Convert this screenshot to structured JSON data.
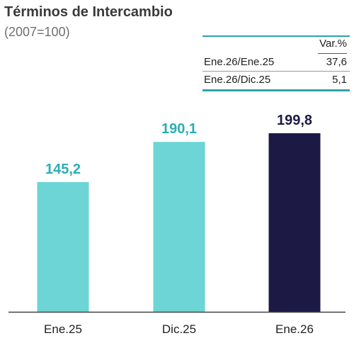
{
  "chart_data": {
    "type": "bar",
    "title": "Términos de Intercambio",
    "subtitle": "(2007=100)",
    "categories": [
      "Ene.25",
      "Dic.25",
      "Ene.26"
    ],
    "values": [
      145.2,
      190.1,
      199.8
    ],
    "value_labels": [
      "145,2",
      "190,1",
      "199,8"
    ],
    "bar_colors": [
      "#6dd5d5",
      "#6dd5d5",
      "#1c1a45"
    ],
    "label_colors": [
      "#29aeb4",
      "#29aeb4",
      "#1c1a45"
    ],
    "ylim": [
      0,
      215
    ],
    "grid": false,
    "legend": "none"
  },
  "variation_table": {
    "header": "Var.%",
    "rows": [
      {
        "label": "Ene.26/Ene.25",
        "value": "37,6"
      },
      {
        "label": "Ene.26/Dic.25",
        "value": "5,1"
      }
    ]
  },
  "colors": {
    "accent_teal": "#2ea3a9",
    "title": "#3a3a3a",
    "subtitle": "#707070",
    "axis": "#444444"
  }
}
